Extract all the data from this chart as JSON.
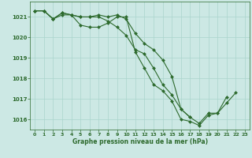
{
  "line1": [
    1021.3,
    1021.3,
    1020.9,
    1021.2,
    1021.1,
    1021.0,
    1021.0,
    1021.0,
    1020.8,
    1020.5,
    1020.1,
    1019.4,
    1019.2,
    1018.5,
    1017.7,
    1017.2,
    1016.5,
    1016.1,
    1015.8,
    1016.3,
    1016.3,
    1017.1,
    null,
    null
  ],
  "line2": [
    1021.3,
    1021.3,
    1020.9,
    1021.2,
    1021.1,
    1021.0,
    1021.0,
    1021.1,
    1021.0,
    1021.1,
    1020.9,
    1020.2,
    1019.7,
    1019.4,
    1018.9,
    1018.1,
    1016.5,
    1016.1,
    null,
    null,
    null,
    null,
    null,
    null
  ],
  "line3": [
    1021.3,
    1021.3,
    1020.9,
    1021.1,
    1021.1,
    1020.6,
    1020.5,
    1020.5,
    1020.7,
    1021.0,
    1021.0,
    1019.3,
    1018.5,
    1017.7,
    1017.4,
    1016.9,
    1016.0,
    1015.9,
    1015.7,
    1016.2,
    1016.3,
    1016.8,
    1017.3,
    null
  ],
  "x": [
    0,
    1,
    2,
    3,
    4,
    5,
    6,
    7,
    8,
    9,
    10,
    11,
    12,
    13,
    14,
    15,
    16,
    17,
    18,
    19,
    20,
    21,
    22,
    23
  ],
  "xlim": [
    -0.5,
    23.5
  ],
  "ylim": [
    1015.5,
    1021.75
  ],
  "yticks": [
    1016,
    1017,
    1018,
    1019,
    1020,
    1021
  ],
  "xticks": [
    0,
    1,
    2,
    3,
    4,
    5,
    6,
    7,
    8,
    9,
    10,
    11,
    12,
    13,
    14,
    15,
    16,
    17,
    18,
    19,
    20,
    21,
    22,
    23
  ],
  "xlabel": "Graphe pression niveau de la mer (hPa)",
  "line_color": "#2d6a2d",
  "bg_color": "#cce8e4",
  "grid_color": "#aad4cc",
  "marker": "D",
  "marker_size": 2.0,
  "linewidth": 0.8
}
